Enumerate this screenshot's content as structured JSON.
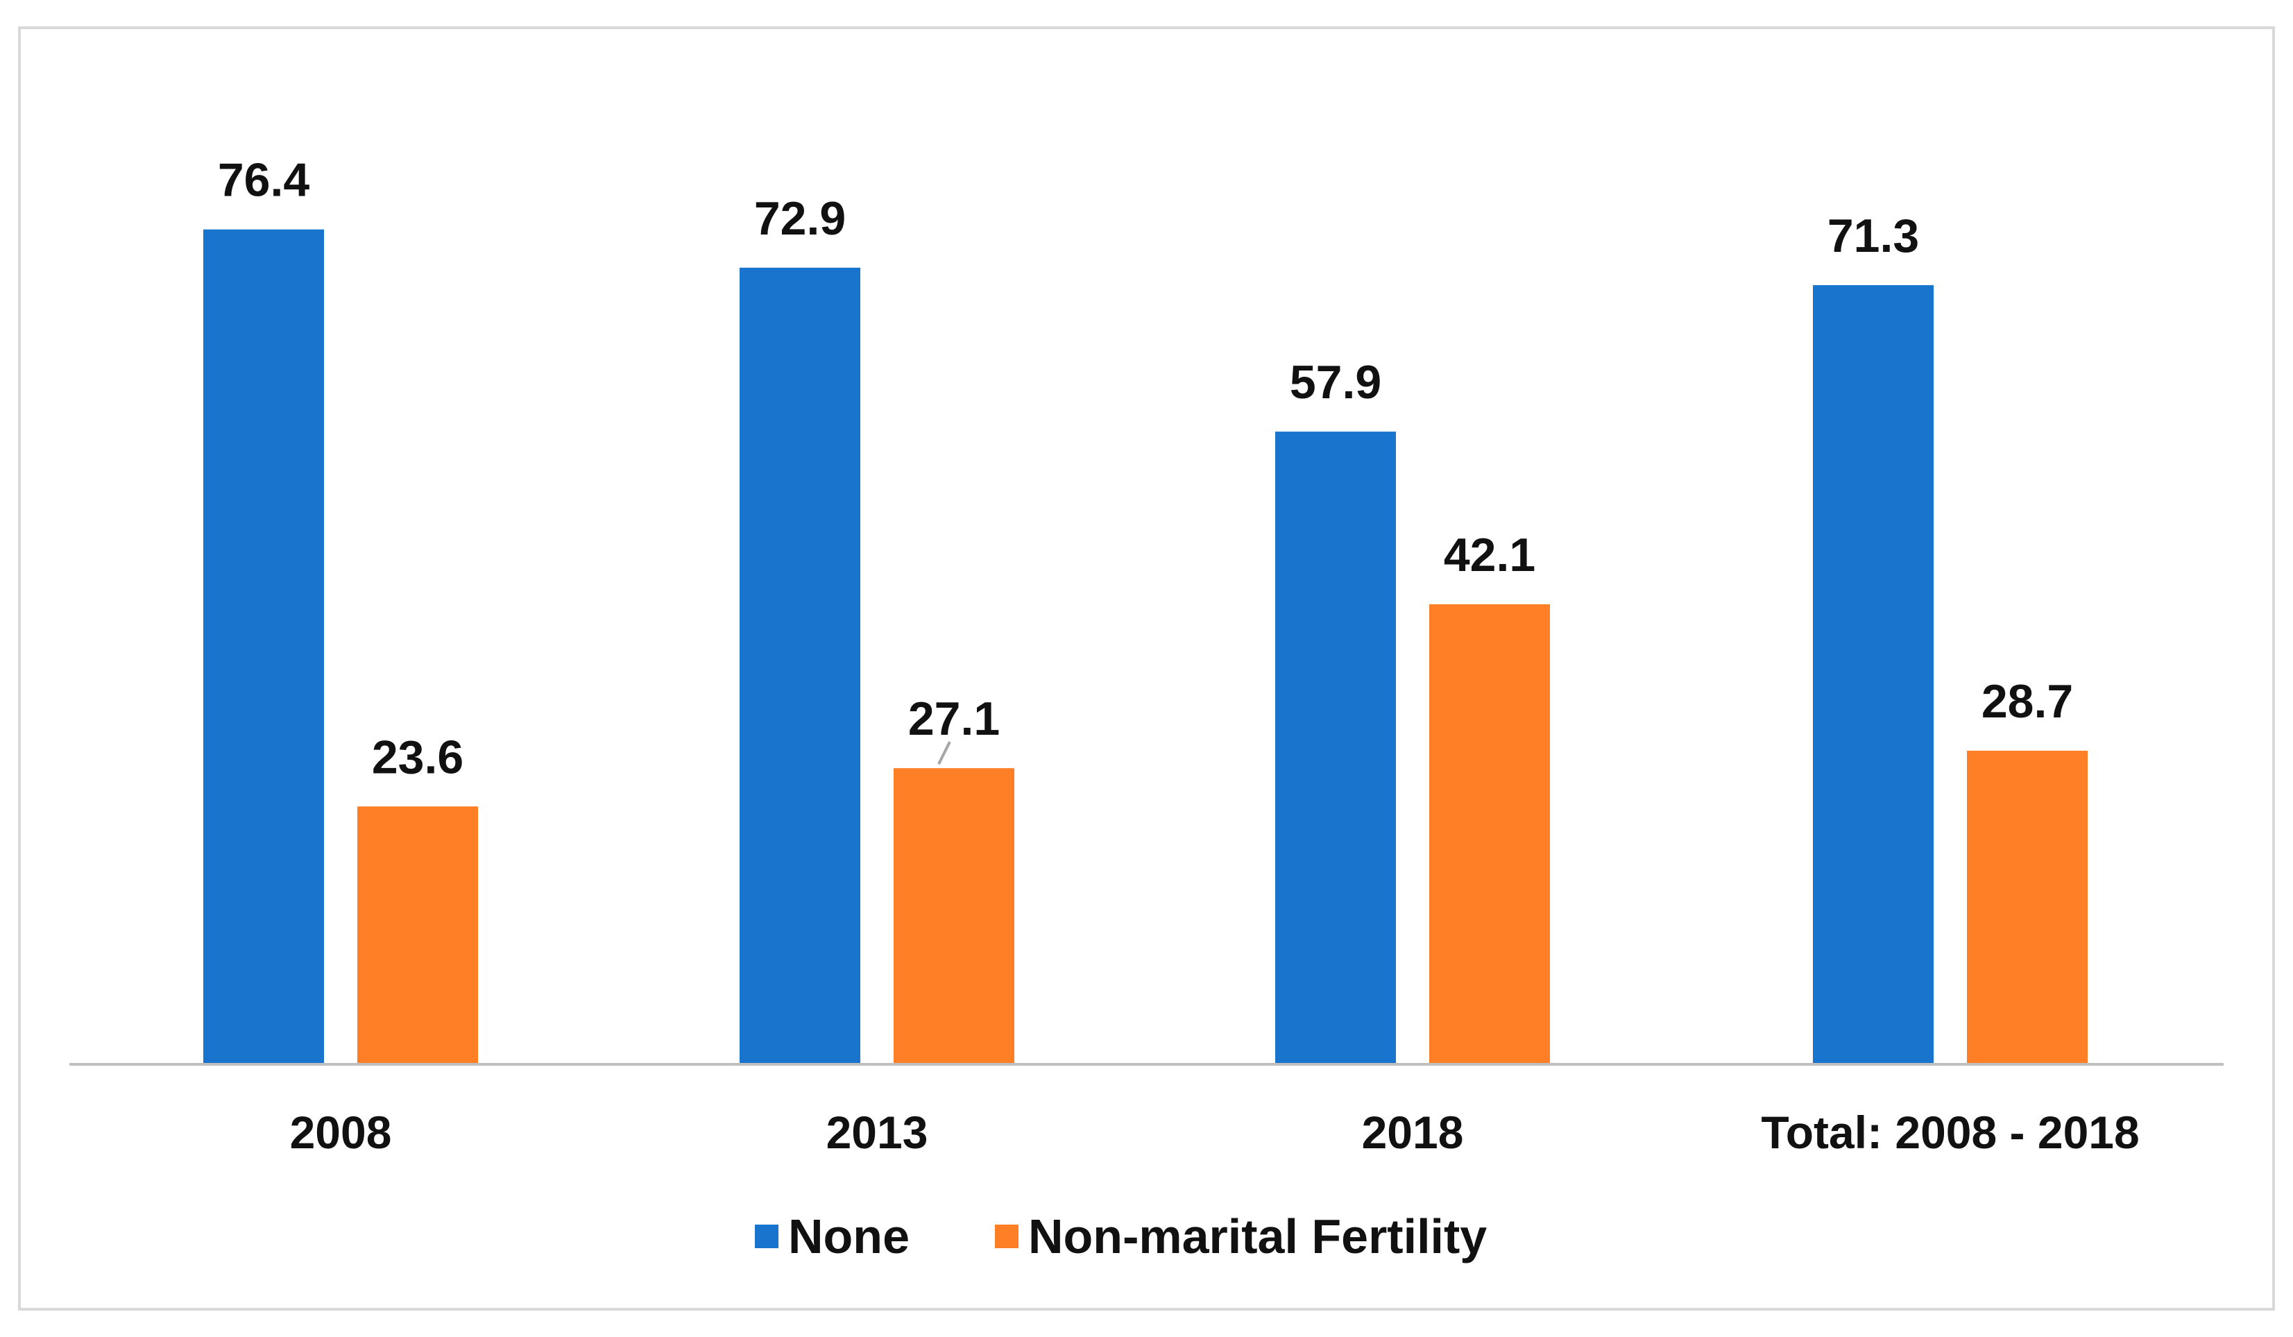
{
  "chart_data": {
    "type": "bar",
    "title": "",
    "xlabel": "",
    "ylabel": "",
    "categories": [
      "2008",
      "2013",
      "2018",
      "Total: 2008 - 2018"
    ],
    "series": [
      {
        "name": "None",
        "color": "#1874CD",
        "values": [
          76.4,
          72.9,
          57.9,
          71.3
        ],
        "labels": [
          "76.4",
          "72.9",
          "57.9",
          "71.3"
        ]
      },
      {
        "name": "Non-marital Fertility",
        "color": "#FF7F27",
        "values": [
          23.6,
          27.1,
          42.1,
          28.7
        ],
        "labels": [
          "23.6",
          "27.1",
          "42.1",
          "28.7"
        ]
      }
    ],
    "ylim": [
      0,
      80
    ],
    "grid": false,
    "legend": "bottom",
    "axis_color": "#bfbfbf",
    "leader_line_color": "#a6a6a6"
  }
}
